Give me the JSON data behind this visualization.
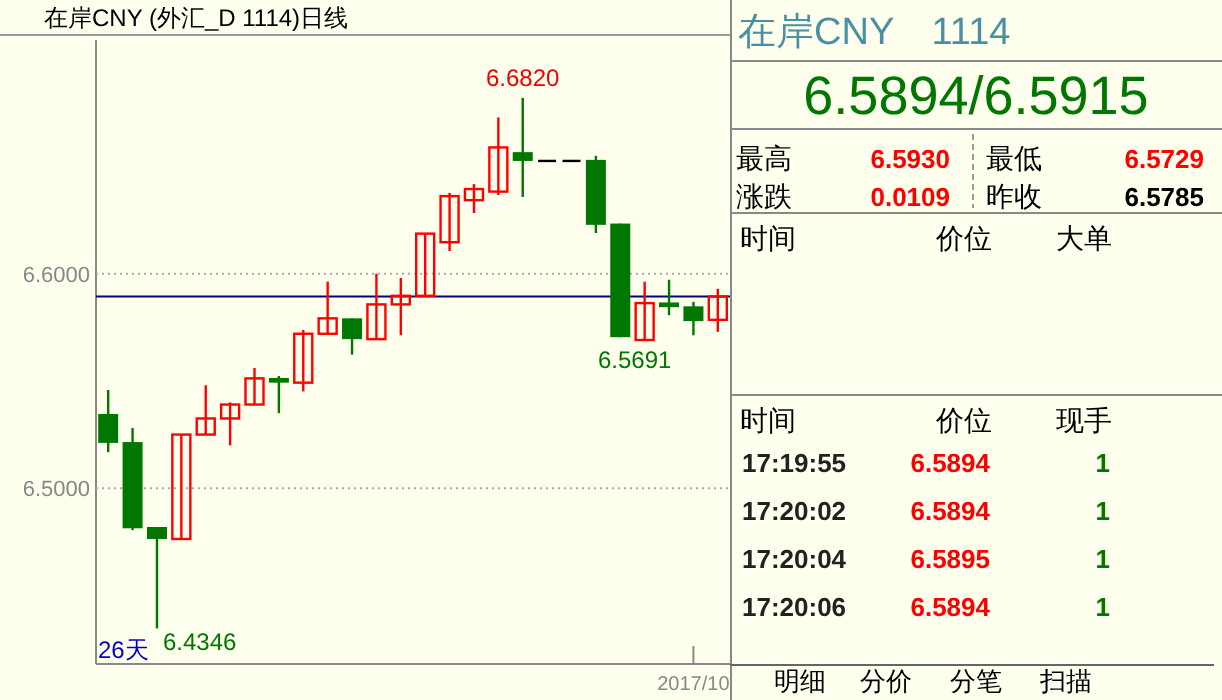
{
  "chart_data": [
    {
      "type": "candlestick",
      "title": "在岸CNY (外汇_D 1114)日线",
      "categories": [
        null,
        null,
        null,
        null,
        null,
        null,
        null,
        null,
        null,
        null,
        null,
        null,
        null,
        null,
        null,
        null,
        null,
        null,
        null,
        null,
        null,
        null,
        null,
        null,
        "2017/10",
        null
      ],
      "ohlc": [
        [
          6.5346,
          6.5458,
          6.5168,
          6.5211
        ],
        [
          6.5215,
          6.528,
          6.4804,
          6.4813
        ],
        [
          6.4819,
          6.4819,
          6.4346,
          6.4763
        ],
        [
          6.4763,
          6.525,
          6.4763,
          6.525
        ],
        [
          6.525,
          6.548,
          6.525,
          6.5325
        ],
        [
          6.5325,
          6.54,
          6.52,
          6.539
        ],
        [
          6.539,
          6.556,
          6.539,
          6.5512
        ],
        [
          6.5514,
          6.5523,
          6.535,
          6.5492
        ],
        [
          6.5492,
          6.5738,
          6.5451,
          6.572
        ],
        [
          6.572,
          6.5963,
          6.572,
          6.5792
        ],
        [
          6.5792,
          6.5792,
          6.5623,
          6.5695
        ],
        [
          6.5695,
          6.6,
          6.5695,
          6.5857
        ],
        [
          6.5857,
          6.598,
          6.5713,
          6.5897
        ],
        [
          6.5897,
          6.6187,
          6.5897,
          6.6187
        ],
        [
          6.6147,
          6.6377,
          6.6106,
          6.6362
        ],
        [
          6.6343,
          6.6418,
          6.6283,
          6.6395
        ],
        [
          6.6383,
          6.6729,
          6.6367,
          6.6589
        ],
        [
          6.6567,
          6.682,
          6.6358,
          6.6526
        ],
        [
          6.6526,
          6.6526,
          6.6526,
          6.6526
        ],
        [
          6.6526,
          6.6526,
          6.6526,
          6.6526
        ],
        [
          6.6531,
          6.655,
          6.619,
          6.6228
        ],
        [
          6.6234,
          6.6234,
          6.5704,
          6.5704
        ],
        [
          6.5691,
          6.5963,
          6.5691,
          6.5863
        ],
        [
          6.5866,
          6.5972,
          6.5807,
          6.5844
        ],
        [
          6.5848,
          6.5869,
          6.5713,
          6.5779
        ],
        [
          6.5785,
          6.593,
          6.5729,
          6.5894
        ]
      ],
      "ylim": [
        6.418,
        6.709
      ],
      "yticks": [
        {
          "value": 6.5,
          "label": "6.5000"
        },
        {
          "value": 6.6,
          "label": "6.6000"
        }
      ],
      "grid": "y",
      "ref_lines": [
        {
          "axis": "y",
          "value": 6.5894,
          "color": "#000080"
        }
      ],
      "annotations": [
        "6.6820",
        "6.5691",
        "6.4346",
        "26天"
      ]
    },
    {
      "type": "other",
      "title": "在岸CNY　1114",
      "subtitle": "6.5894/6.5915",
      "annotations": [
        "最高",
        "6.5930",
        "最低",
        "6.5729",
        "涨跌",
        "0.0109",
        "昨收",
        "6.5785",
        "时间",
        "价位",
        "大单",
        "时间",
        "价位",
        "现手",
        "17:19:55",
        "6.5894",
        "1",
        "17:20:02",
        "6.5894",
        "1",
        "17:20:04",
        "6.5895",
        "1",
        "17:20:06",
        "6.5894",
        "1",
        "明细",
        "分价",
        "分笔",
        "扫描"
      ]
    }
  ]
}
